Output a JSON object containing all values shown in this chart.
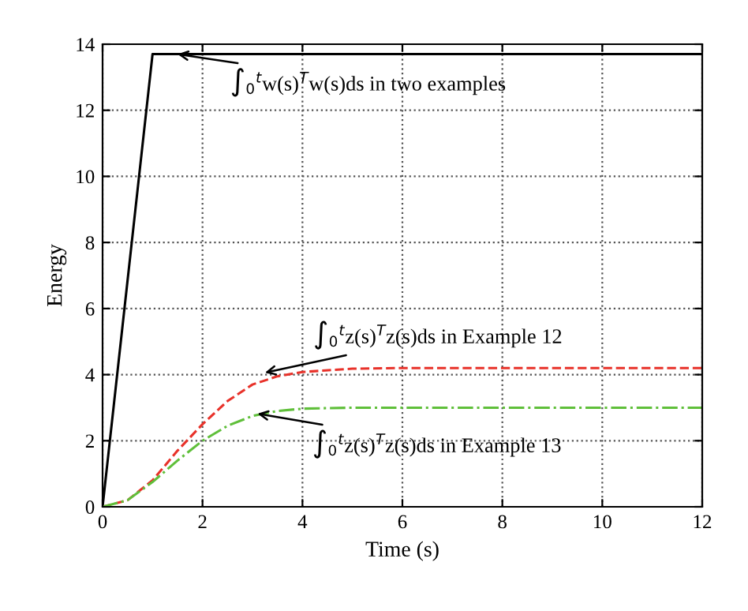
{
  "chart_data": {
    "type": "line",
    "xlabel": "Time (s)",
    "ylabel": "Energy",
    "xlim": [
      0,
      12
    ],
    "ylim": [
      0,
      14
    ],
    "xticks": [
      0,
      2,
      4,
      6,
      8,
      10,
      12
    ],
    "yticks": [
      0,
      2,
      4,
      6,
      8,
      10,
      12,
      14
    ],
    "grid": true,
    "series": [
      {
        "color": "#000000",
        "line_style": "solid",
        "x": [
          0,
          1.0,
          12
        ],
        "values": [
          0,
          13.7,
          13.7
        ]
      },
      {
        "color": "#e8322a",
        "line_style": "dashed",
        "x": [
          0,
          0.5,
          1,
          1.5,
          2,
          2.5,
          3,
          3.5,
          4,
          5,
          6,
          12
        ],
        "values": [
          0,
          0.2,
          0.8,
          1.7,
          2.5,
          3.2,
          3.7,
          3.95,
          4.08,
          4.18,
          4.2,
          4.2
        ]
      },
      {
        "color": "#5fbf3a",
        "line_style": "dashdot",
        "x": [
          0,
          0.5,
          1,
          1.5,
          2,
          2.5,
          3,
          3.5,
          4,
          5,
          12
        ],
        "values": [
          0,
          0.2,
          0.75,
          1.4,
          2.0,
          2.45,
          2.75,
          2.9,
          2.97,
          3.0,
          3.0
        ]
      }
    ],
    "annotations": [
      {
        "text": "∫$_{0}$$^{t}$w(s)$^{T}$w(s)ds in two examples",
        "x": 1.5,
        "y": 13.7
      },
      {
        "text": "∫$_{0}$$^{t}$z(s)$^{T}$z(s)ds in Example 12",
        "x": 3.25,
        "y": 4.06
      },
      {
        "text": "∫$_{0}$$^{t}$z(s)$^{T}$z(s)ds in Example 13",
        "x": 3.1,
        "y": 2.82
      }
    ]
  }
}
